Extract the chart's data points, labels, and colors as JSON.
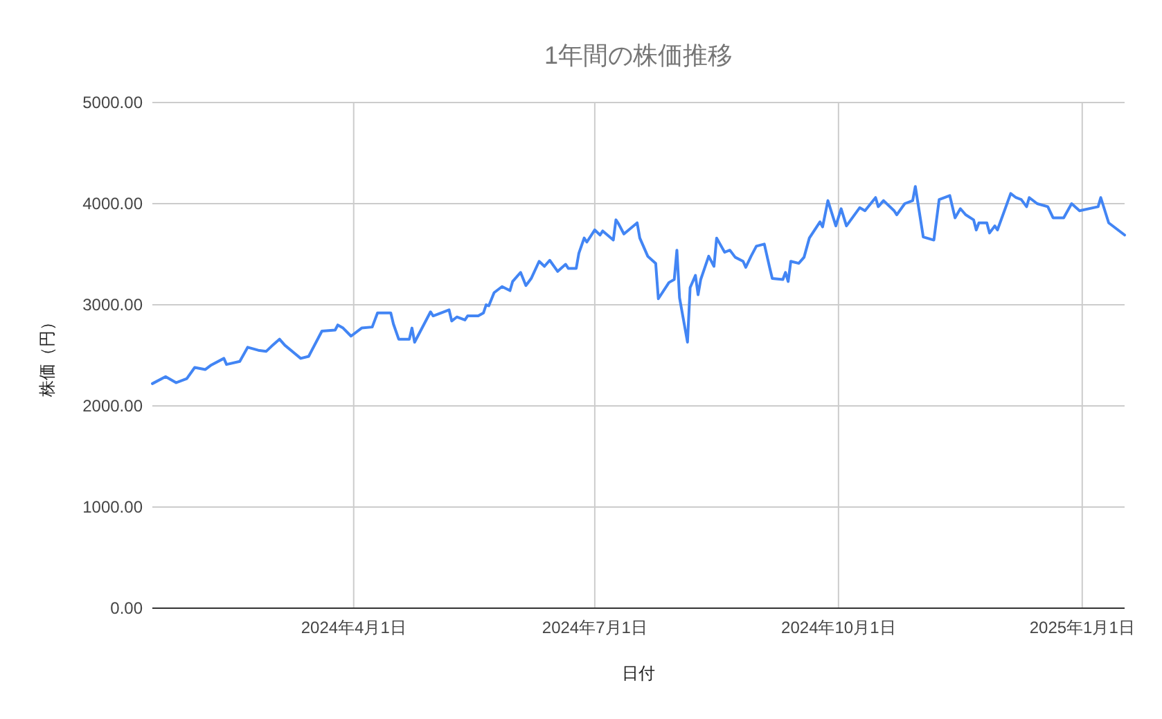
{
  "chart_data": {
    "type": "line",
    "title": "1年間の株価推移",
    "xlabel": "日付",
    "ylabel": "株価（円）",
    "x": [
      "2024-01-16",
      "2024-01-21",
      "2024-01-25",
      "2024-01-29",
      "2024-02-01",
      "2024-02-05",
      "2024-02-07",
      "2024-02-12",
      "2024-02-13",
      "2024-02-18",
      "2024-02-21",
      "2024-02-25",
      "2024-02-28",
      "2024-03-01",
      "2024-03-04",
      "2024-03-06",
      "2024-03-12",
      "2024-03-15",
      "2024-03-20",
      "2024-03-25",
      "2024-03-26",
      "2024-03-28",
      "2024-03-31",
      "2024-04-04",
      "2024-04-08",
      "2024-04-09",
      "2024-04-10",
      "2024-04-15",
      "2024-04-16",
      "2024-04-18",
      "2024-04-22",
      "2024-04-23",
      "2024-04-24",
      "2024-04-30",
      "2024-05-01",
      "2024-05-07",
      "2024-05-08",
      "2024-05-10",
      "2024-05-13",
      "2024-05-14",
      "2024-05-18",
      "2024-05-20",
      "2024-05-21",
      "2024-05-22",
      "2024-05-24",
      "2024-05-27",
      "2024-05-30",
      "2024-05-31",
      "2024-06-03",
      "2024-06-05",
      "2024-06-07",
      "2024-06-10",
      "2024-06-12",
      "2024-06-14",
      "2024-06-17",
      "2024-06-20",
      "2024-06-21",
      "2024-06-24",
      "2024-06-25",
      "2024-06-27",
      "2024-06-28",
      "2024-07-01",
      "2024-07-03",
      "2024-07-04",
      "2024-07-08",
      "2024-07-09",
      "2024-07-10",
      "2024-07-12",
      "2024-07-17",
      "2024-07-18",
      "2024-07-21",
      "2024-07-24",
      "2024-07-25",
      "2024-07-29",
      "2024-07-31",
      "2024-08-01",
      "2024-08-02",
      "2024-08-05",
      "2024-08-06",
      "2024-08-08",
      "2024-08-09",
      "2024-08-10",
      "2024-08-13",
      "2024-08-15",
      "2024-08-16",
      "2024-08-19",
      "2024-08-21",
      "2024-08-23",
      "2024-08-26",
      "2024-08-27",
      "2024-08-29",
      "2024-08-31",
      "2024-09-03",
      "2024-09-05",
      "2024-09-06",
      "2024-09-10",
      "2024-09-11",
      "2024-09-12",
      "2024-09-13",
      "2024-09-16",
      "2024-09-18",
      "2024-09-20",
      "2024-09-24",
      "2024-09-25",
      "2024-09-27",
      "2024-09-30",
      "2024-10-02",
      "2024-10-04",
      "2024-10-09",
      "2024-10-11",
      "2024-10-15",
      "2024-10-16",
      "2024-10-18",
      "2024-10-22",
      "2024-10-23",
      "2024-10-26",
      "2024-10-29",
      "2024-10-30",
      "2024-11-02",
      "2024-11-06",
      "2024-11-08",
      "2024-11-12",
      "2024-11-14",
      "2024-11-16",
      "2024-11-18",
      "2024-11-21",
      "2024-11-22",
      "2024-11-23",
      "2024-11-26",
      "2024-11-27",
      "2024-11-29",
      "2024-11-30",
      "2024-12-05",
      "2024-12-07",
      "2024-12-09",
      "2024-12-11",
      "2024-12-12",
      "2024-12-15",
      "2024-12-19",
      "2024-12-21",
      "2024-12-25",
      "2024-12-28",
      "2024-12-31",
      "2025-01-07",
      "2025-01-08",
      "2025-01-11",
      "2025-01-17"
    ],
    "series": [
      {
        "color": "#4285f4",
        "values": [
          2220,
          2290,
          2230,
          2270,
          2380,
          2360,
          2400,
          2470,
          2410,
          2440,
          2580,
          2550,
          2540,
          2590,
          2660,
          2600,
          2470,
          2490,
          2740,
          2750,
          2800,
          2770,
          2690,
          2770,
          2780,
          2850,
          2920,
          2920,
          2810,
          2660,
          2660,
          2770,
          2630,
          2930,
          2890,
          2950,
          2840,
          2880,
          2850,
          2890,
          2890,
          2920,
          3000,
          2990,
          3120,
          3180,
          3140,
          3230,
          3320,
          3190,
          3260,
          3430,
          3380,
          3440,
          3330,
          3400,
          3360,
          3360,
          3510,
          3660,
          3620,
          3740,
          3690,
          3730,
          3640,
          3840,
          3800,
          3700,
          3810,
          3660,
          3480,
          3410,
          3060,
          3220,
          3250,
          3540,
          3070,
          2630,
          3170,
          3290,
          3100,
          3250,
          3480,
          3380,
          3660,
          3520,
          3540,
          3470,
          3430,
          3370,
          3480,
          3580,
          3600,
          3370,
          3260,
          3250,
          3320,
          3230,
          3430,
          3410,
          3470,
          3660,
          3820,
          3770,
          4030,
          3780,
          3950,
          3780,
          3960,
          3930,
          4060,
          3970,
          4030,
          3930,
          3890,
          4000,
          4030,
          4170,
          3670,
          3640,
          4040,
          4080,
          3860,
          3950,
          3890,
          3840,
          3740,
          3810,
          3810,
          3710,
          3780,
          3740,
          4100,
          4060,
          4040,
          3970,
          4060,
          4000,
          3970,
          3860,
          3860,
          4000,
          3930,
          3970,
          4060,
          3810,
          3690
        ]
      }
    ],
    "xlim": [
      "2024-01-16",
      "2025-01-17"
    ],
    "ylim": [
      0,
      5000
    ],
    "xticks": [
      {
        "value": "2024-04-01",
        "label": "2024年4月1日"
      },
      {
        "value": "2024-07-01",
        "label": "2024年7月1日"
      },
      {
        "value": "2024-10-01",
        "label": "2024年10月1日"
      },
      {
        "value": "2025-01-01",
        "label": "2025年1月1日"
      }
    ],
    "yticks": [
      {
        "value": 0,
        "label": "0.00"
      },
      {
        "value": 1000,
        "label": "1000.00"
      },
      {
        "value": 2000,
        "label": "2000.00"
      },
      {
        "value": 3000,
        "label": "3000.00"
      },
      {
        "value": 4000,
        "label": "4000.00"
      },
      {
        "value": 5000,
        "label": "5000.00"
      }
    ],
    "grid": true
  }
}
